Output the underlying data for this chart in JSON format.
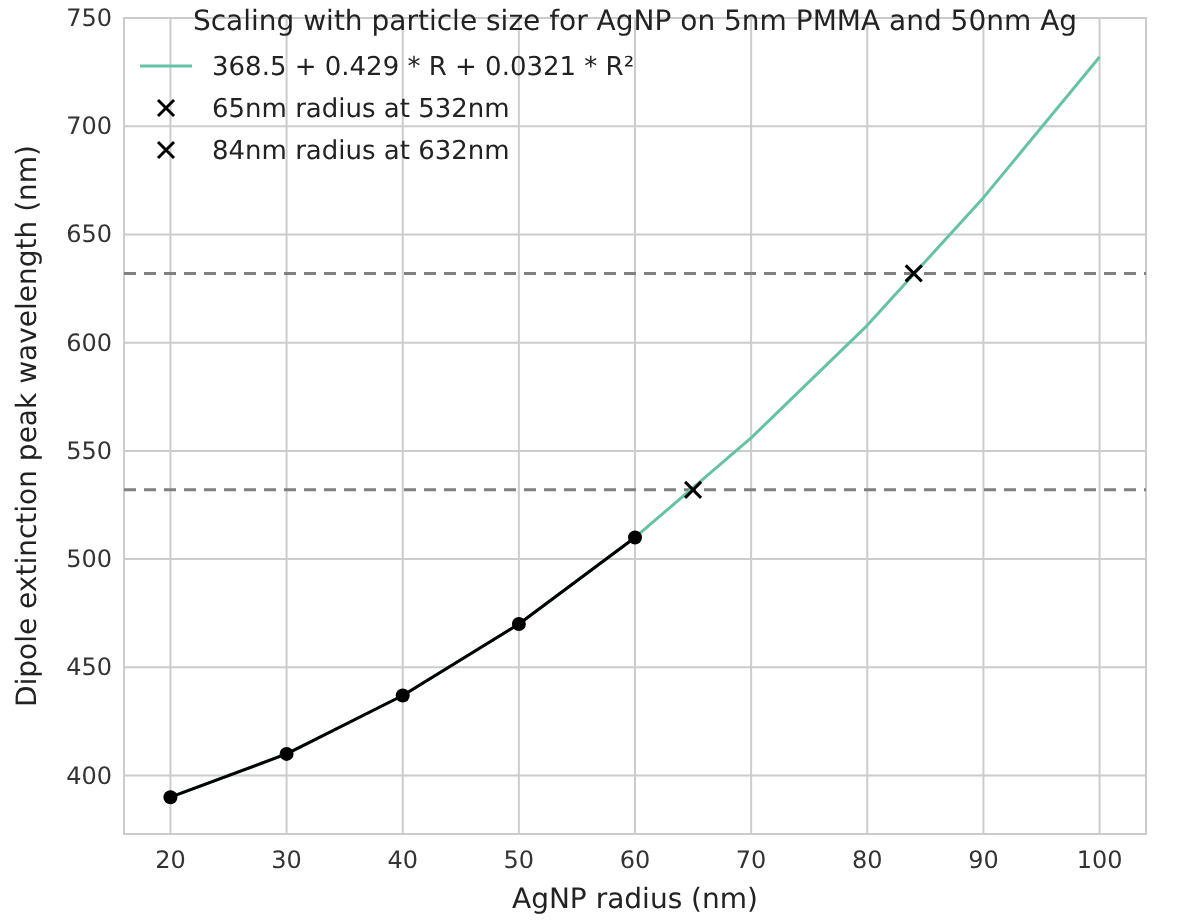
{
  "chart_data": {
    "type": "line",
    "title": "Scaling with particle size for AgNP on 5nm PMMA and 50nm Ag",
    "xlabel": "AgNP radius (nm)",
    "ylabel": "Dipole extinction peak wavelength (nm)",
    "xlim": [
      16,
      104
    ],
    "xticks": [
      20,
      30,
      40,
      50,
      60,
      70,
      80,
      90,
      100
    ],
    "ylim": [
      373,
      750
    ],
    "yticks": [
      400,
      450,
      500,
      550,
      600,
      650,
      700,
      750
    ],
    "grid": true,
    "legend": "top left",
    "ref_lines": [
      {
        "axis": "y",
        "value": 532,
        "color": "#808080",
        "line_style": "dashed"
      },
      {
        "axis": "y",
        "value": 632,
        "color": "#808080",
        "line_style": "dashed"
      }
    ],
    "series": [
      {
        "name": "368.5 + 0.429 * R + 0.0321 * R²",
        "color": "#66c2a5",
        "marker": "none",
        "x": [
          20,
          30,
          40,
          50,
          60,
          70,
          80,
          90,
          100
        ],
        "values": [
          390,
          410,
          437,
          470,
          510,
          556,
          608,
          667,
          732
        ]
      },
      {
        "color": "#000000",
        "marker": "circle",
        "x": [
          20,
          30,
          40,
          50,
          60
        ],
        "values": [
          390,
          410,
          437,
          470,
          510
        ]
      },
      {
        "type": "scatter",
        "name": "65nm radius at 532nm",
        "color": "#000000",
        "marker": "cross",
        "x": [
          65
        ],
        "values": [
          532
        ]
      },
      {
        "type": "scatter",
        "name": "84nm radius at 632nm",
        "color": "#000000",
        "marker": "cross",
        "x": [
          84
        ],
        "values": [
          632
        ]
      }
    ]
  }
}
